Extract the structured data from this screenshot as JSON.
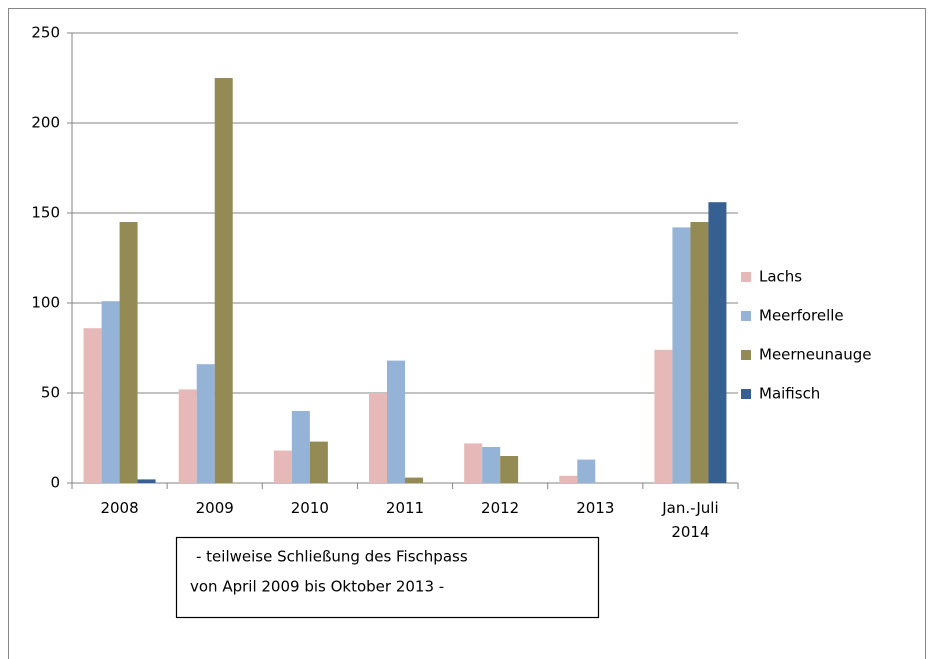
{
  "chart_data": {
    "type": "bar",
    "categories": [
      "2008",
      "2009",
      "2010",
      "2011",
      "2012",
      "2013",
      "Jan.-Juli 2014"
    ],
    "series": [
      {
        "name": "Lachs",
        "color": "#e6b9b8",
        "values": [
          86,
          52,
          18,
          50,
          22,
          4,
          74
        ]
      },
      {
        "name": "Meerforelle",
        "color": "#95b3d7",
        "values": [
          101,
          66,
          40,
          68,
          20,
          13,
          142
        ]
      },
      {
        "name": "Meerneunauge",
        "color": "#948a54",
        "values": [
          145,
          225,
          23,
          3,
          15,
          0,
          145
        ]
      },
      {
        "name": "Maifisch",
        "color": "#376092",
        "values": [
          2,
          0,
          0,
          0,
          0,
          0,
          156
        ]
      }
    ],
    "ylim": [
      0,
      250
    ],
    "yticks": [
      0,
      50,
      100,
      150,
      200,
      250
    ],
    "grid": true,
    "legend": "right",
    "annotation": [
      "- teilweise Schließung des Fischpass",
      "von April 2009 bis Oktober 2013 -"
    ]
  }
}
